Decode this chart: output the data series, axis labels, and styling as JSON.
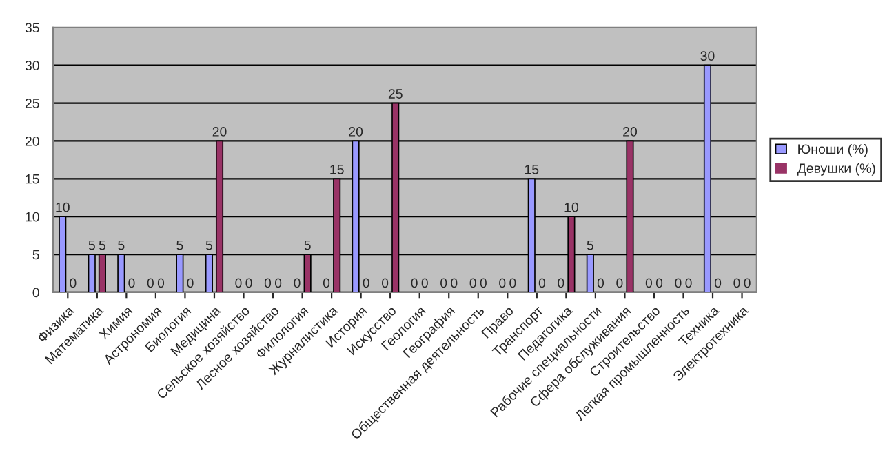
{
  "chart_data": {
    "type": "bar",
    "categories": [
      "Физика",
      "Математика",
      "Химия",
      "Астрономия",
      "Биология",
      "Медицина",
      "Сельское хозяйство",
      "Лесное хозяйство",
      "Филология",
      "Журналистика",
      "История",
      "Искусство",
      "Геология",
      "География",
      "Общественная деятельность",
      "Право",
      "Транспорт",
      "Педагогика",
      "Рабочие специальности",
      "Сфера обслуживания",
      "Строительство",
      "Легкая промышленность",
      "Техника",
      "Электротехника"
    ],
    "series": [
      {
        "name": "Юноши (%)",
        "color": "#9999ff",
        "values": [
          10,
          5,
          5,
          0,
          5,
          5,
          0,
          0,
          0,
          0,
          20,
          0,
          0,
          0,
          0,
          0,
          15,
          0,
          5,
          0,
          0,
          0,
          30,
          0
        ]
      },
      {
        "name": "Девушки (%)",
        "color": "#993366",
        "values": [
          0,
          5,
          0,
          0,
          0,
          20,
          0,
          0,
          5,
          15,
          0,
          25,
          0,
          0,
          0,
          0,
          0,
          10,
          0,
          20,
          0,
          0,
          0,
          0
        ]
      }
    ],
    "ylim": [
      0,
      35
    ],
    "yticks": [
      0,
      5,
      10,
      15,
      20,
      25,
      30,
      35
    ],
    "grid": "y",
    "legend": "right",
    "data_labels": true
  }
}
